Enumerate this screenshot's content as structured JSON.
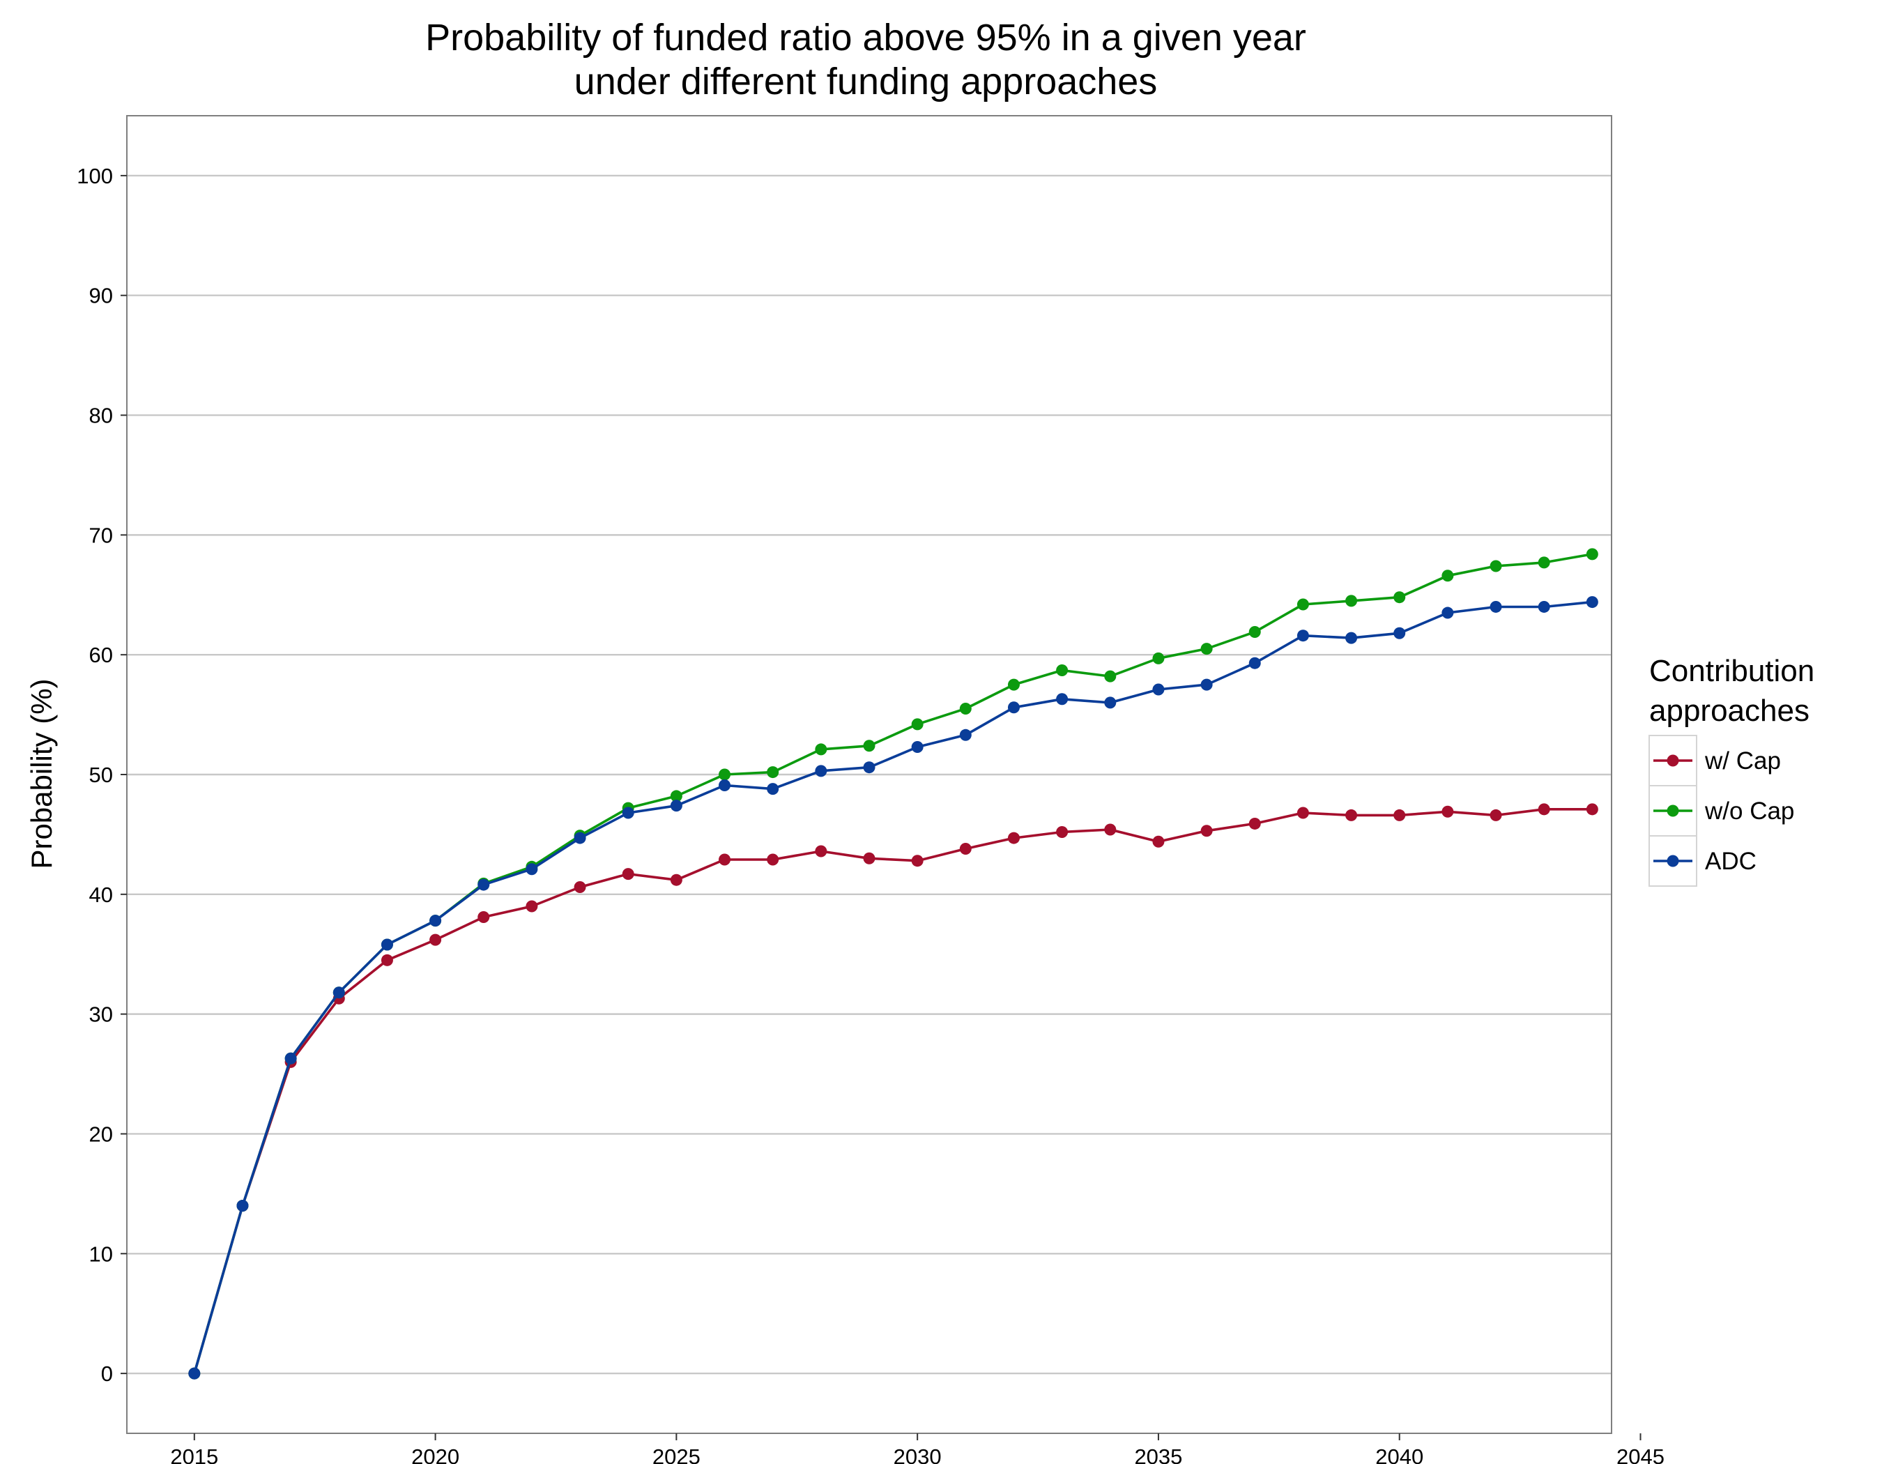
{
  "chart_data": {
    "type": "line",
    "title": [
      "Probability of funded ratio above 95% in a given year",
      "under different funding approaches"
    ],
    "ylabel": "Probability (%)",
    "xlabel": "",
    "xlim": [
      2013.6,
      2044.4
    ],
    "ylim": [
      -5,
      105
    ],
    "xticks": [
      2015,
      2020,
      2025,
      2030,
      2035,
      2040,
      2045
    ],
    "yticks": [
      0,
      10,
      20,
      30,
      40,
      50,
      60,
      70,
      80,
      90,
      100
    ],
    "grid": "horizontal",
    "legend": {
      "title": [
        "Contribution",
        "approaches"
      ],
      "placement": "right"
    },
    "x": [
      2015,
      2016,
      2017,
      2018,
      2019,
      2020,
      2021,
      2022,
      2023,
      2024,
      2025,
      2026,
      2027,
      2028,
      2029,
      2030,
      2031,
      2032,
      2033,
      2034,
      2035,
      2036,
      2037,
      2038,
      2039,
      2040,
      2041,
      2042,
      2043,
      2044
    ],
    "series": [
      {
        "name": "w/ Cap",
        "color": "#a50f2d",
        "values": [
          0,
          14,
          26,
          31.3,
          34.5,
          36.2,
          38.1,
          39.0,
          40.6,
          41.7,
          41.2,
          42.9,
          42.9,
          43.6,
          43.0,
          42.8,
          43.8,
          44.7,
          45.2,
          45.4,
          44.4,
          45.3,
          45.9,
          46.8,
          46.6,
          46.6,
          46.9,
          46.6,
          47.1,
          47.1
        ]
      },
      {
        "name": "w/o Cap",
        "color": "#0c9b0f",
        "values": [
          0,
          14,
          26.3,
          31.8,
          35.8,
          37.8,
          40.9,
          42.3,
          44.9,
          47.2,
          48.2,
          50.0,
          50.2,
          52.1,
          52.4,
          54.2,
          55.5,
          57.5,
          58.7,
          58.2,
          59.7,
          60.5,
          61.9,
          64.2,
          64.5,
          64.8,
          66.6,
          67.4,
          67.7,
          68.4
        ]
      },
      {
        "name": "ADC",
        "color": "#0a3d99",
        "values": [
          0,
          14,
          26.3,
          31.8,
          35.8,
          37.8,
          40.8,
          42.1,
          44.7,
          46.8,
          47.4,
          49.1,
          48.8,
          50.3,
          50.6,
          52.3,
          53.3,
          55.6,
          56.3,
          56.0,
          57.1,
          57.5,
          59.3,
          61.6,
          61.4,
          61.8,
          63.5,
          64.0,
          64.0,
          64.4
        ]
      }
    ]
  }
}
